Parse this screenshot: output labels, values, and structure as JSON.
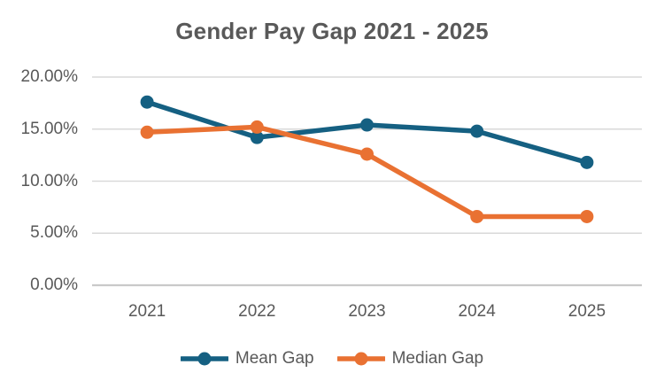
{
  "title": "Gender Pay Gap 2021 - 2025",
  "colors": {
    "mean_series": "#156082",
    "median_series": "#E97132",
    "title_text": "#595959",
    "axis_text": "#595959",
    "gridline": "#D9D9D9",
    "axis_line": "#C9C9C9",
    "background": "#FFFFFF"
  },
  "chart_data": {
    "type": "line",
    "title": "Gender Pay Gap 2021 - 2025",
    "categories": [
      "2021",
      "2022",
      "2023",
      "2024",
      "2025"
    ],
    "series": [
      {
        "name": "Mean Gap",
        "color": "#156082",
        "values": [
          17.6,
          14.2,
          15.4,
          14.8,
          11.8
        ]
      },
      {
        "name": "Median Gap",
        "color": "#E97132",
        "values": [
          14.7,
          15.2,
          12.6,
          6.6,
          6.6
        ]
      }
    ],
    "xlabel": "",
    "ylabel": "",
    "ylim": [
      0,
      20
    ],
    "y_ticks": [
      {
        "value": 20,
        "label": "20.00%"
      },
      {
        "value": 15,
        "label": "15.00%"
      },
      {
        "value": 10,
        "label": "10.00%"
      },
      {
        "value": 5,
        "label": "5.00%"
      },
      {
        "value": 0,
        "label": "0.00%"
      }
    ],
    "grid": true,
    "legend_position": "bottom",
    "marker": "circle"
  }
}
